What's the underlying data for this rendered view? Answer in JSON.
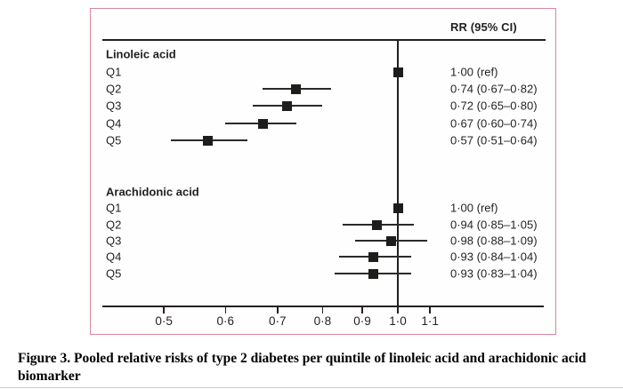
{
  "colors": {
    "frame_border": "#d9879c",
    "ink": "#231f20",
    "marker": "#1d1d1b"
  },
  "caption": {
    "line1": "Figure 3. Pooled relative risks of type 2 diabetes per quintile of linoleic acid and arachidonic acid",
    "line2": "biomarker"
  },
  "chart_data": {
    "type": "forest",
    "title": "",
    "column_header": "RR (95% CI)",
    "x_axis": {
      "scale": "log",
      "ref_line": 1.0,
      "ticks": [
        0.5,
        0.6,
        0.7,
        0.8,
        0.9,
        1.0,
        1.1
      ],
      "tick_labels": [
        "0·5",
        "0·6",
        "0·7",
        "0·8",
        "0·9",
        "1·0",
        "1·1"
      ],
      "visible_range": [
        0.42,
        1.15
      ]
    },
    "groups": [
      {
        "name": "Linoleic acid",
        "rows": [
          {
            "label": "Q1",
            "rr": 1.0,
            "ci_low": null,
            "ci_high": null,
            "value_text": "1·00 (ref)"
          },
          {
            "label": "Q2",
            "rr": 0.74,
            "ci_low": 0.67,
            "ci_high": 0.82,
            "value_text": "0·74 (0·67–0·82)"
          },
          {
            "label": "Q3",
            "rr": 0.72,
            "ci_low": 0.65,
            "ci_high": 0.8,
            "value_text": "0·72 (0·65–0·80)"
          },
          {
            "label": "Q4",
            "rr": 0.67,
            "ci_low": 0.6,
            "ci_high": 0.74,
            "value_text": "0·67 (0·60–0·74)"
          },
          {
            "label": "Q5",
            "rr": 0.57,
            "ci_low": 0.51,
            "ci_high": 0.64,
            "value_text": "0·57 (0·51–0·64)"
          }
        ]
      },
      {
        "name": "Arachidonic acid",
        "rows": [
          {
            "label": "Q1",
            "rr": 1.0,
            "ci_low": null,
            "ci_high": null,
            "value_text": "1·00 (ref)"
          },
          {
            "label": "Q2",
            "rr": 0.94,
            "ci_low": 0.85,
            "ci_high": 1.05,
            "value_text": "0·94 (0·85–1·05)"
          },
          {
            "label": "Q3",
            "rr": 0.98,
            "ci_low": 0.88,
            "ci_high": 1.09,
            "value_text": "0·98 (0·88–1·09)"
          },
          {
            "label": "Q4",
            "rr": 0.93,
            "ci_low": 0.84,
            "ci_high": 1.04,
            "value_text": "0·93 (0·84–1·04)"
          },
          {
            "label": "Q5",
            "rr": 0.93,
            "ci_low": 0.83,
            "ci_high": 1.04,
            "value_text": "0·93 (0·83–1·04)"
          }
        ]
      }
    ]
  }
}
